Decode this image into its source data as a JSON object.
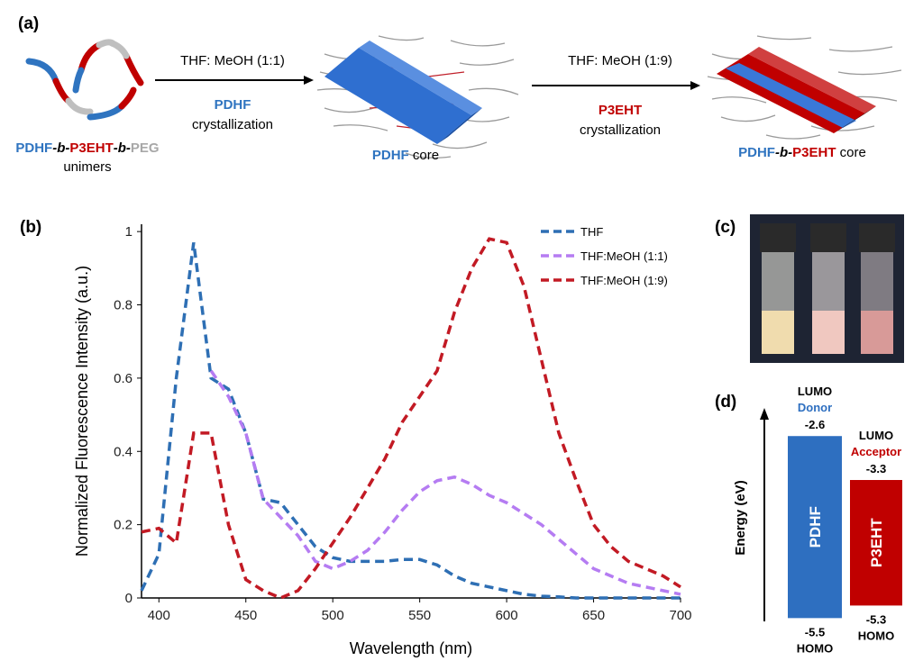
{
  "panel_a": {
    "label": "(a)",
    "step1_condition": "THF: MeOH (1:1)",
    "step1_polymer": "PDHF",
    "step1_process": "crystallization",
    "step2_condition": "THF: MeOH (1:9)",
    "step2_polymer": "P3EHT",
    "step2_process": "crystallization",
    "unimer_name": [
      "PDHF",
      "-b-",
      "P3EHT",
      "-b-",
      "PEG"
    ],
    "unimer_caption": "unimers",
    "core1": [
      "PDHF",
      " core"
    ],
    "core2": [
      "PDHF",
      "-b-",
      "P3EHT",
      " core"
    ]
  },
  "panel_b": {
    "label": "(b)"
  },
  "chart_data": {
    "type": "line",
    "xlabel": "Wavelength (nm)",
    "ylabel": "Normalized Fluorescence Intensity (a.u.)",
    "x": [
      390,
      400,
      410,
      420,
      430,
      440,
      450,
      460,
      470,
      480,
      490,
      500,
      510,
      520,
      530,
      540,
      550,
      560,
      570,
      580,
      590,
      600,
      610,
      620,
      630,
      640,
      650,
      660,
      670,
      680,
      690,
      700
    ],
    "series": [
      {
        "name": "THF",
        "color": "#2e6fb4",
        "values": [
          0.02,
          0.12,
          0.6,
          0.97,
          0.6,
          0.57,
          0.45,
          0.27,
          0.26,
          0.2,
          0.14,
          0.11,
          0.1,
          0.1,
          0.1,
          0.105,
          0.105,
          0.09,
          0.06,
          0.04,
          0.03,
          0.02,
          0.01,
          0.005,
          0.003,
          0,
          0,
          0,
          0,
          0,
          0,
          0
        ]
      },
      {
        "name": "THF:MeOH (1:1)",
        "color": "#b57cf2",
        "values": [
          null,
          null,
          null,
          null,
          0.62,
          0.55,
          0.45,
          0.27,
          0.22,
          0.17,
          0.1,
          0.08,
          0.1,
          0.13,
          0.18,
          0.24,
          0.29,
          0.32,
          0.33,
          0.31,
          0.28,
          0.26,
          0.23,
          0.2,
          0.16,
          0.12,
          0.08,
          0.06,
          0.04,
          0.03,
          0.02,
          0.01
        ]
      },
      {
        "name": "THF:MeOH (1:9)",
        "color": "#c21a24",
        "values": [
          0.18,
          0.19,
          0.15,
          0.45,
          0.45,
          0.2,
          0.05,
          0.02,
          0,
          0.02,
          0.08,
          0.15,
          0.22,
          0.3,
          0.38,
          0.48,
          0.55,
          0.62,
          0.78,
          0.9,
          0.98,
          0.97,
          0.85,
          0.65,
          0.45,
          0.32,
          0.2,
          0.14,
          0.1,
          0.08,
          0.06,
          0.03
        ]
      }
    ],
    "xlim": [
      390,
      700
    ],
    "ylim": [
      0,
      1.02
    ],
    "xticks": [
      400,
      450,
      500,
      550,
      600,
      650,
      700
    ],
    "yticks": [
      0,
      0.2,
      0.4,
      0.6,
      0.8,
      1
    ],
    "legend": "upper right",
    "grid": false
  },
  "panel_c": {
    "label": "(c)"
  },
  "panel_d": {
    "label": "(d)",
    "axis_label": "Energy (eV)",
    "donor": {
      "name": "PDHF",
      "role": "Donor",
      "lumo_label": "LUMO",
      "homo_label": "HOMO",
      "lumo": -2.6,
      "homo": -5.5,
      "color": "#2e6fc0"
    },
    "acceptor": {
      "name": "P3EHT",
      "role": "Acceptor",
      "lumo_label": "LUMO",
      "homo_label": "HOMO",
      "lumo": -3.3,
      "homo": -5.3,
      "color": "#c00000"
    }
  }
}
